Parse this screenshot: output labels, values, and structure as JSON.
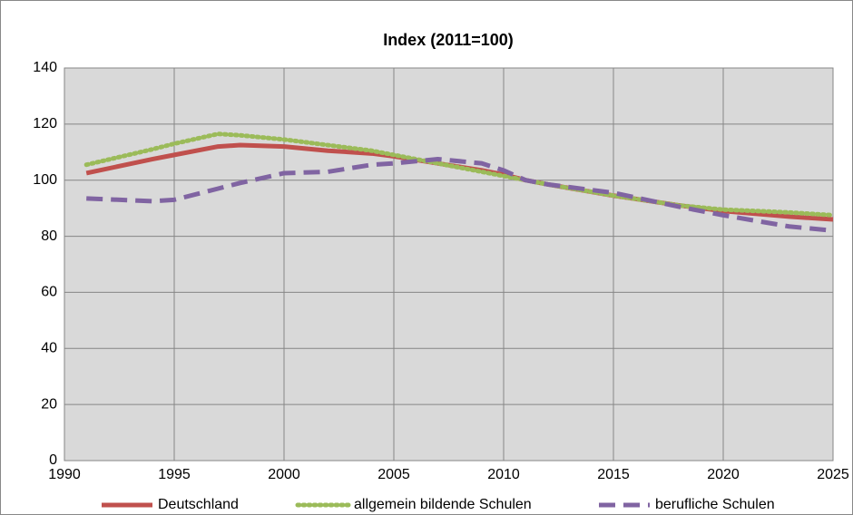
{
  "chart_data": {
    "type": "line",
    "title": "Index (2011=100)",
    "x": [
      1991,
      1994,
      1995,
      1997,
      1998,
      2000,
      2002,
      2004,
      2005,
      2007,
      2009,
      2010,
      2011,
      2012,
      2015,
      2018,
      2020,
      2023,
      2025
    ],
    "series": [
      {
        "name": "Deutschland",
        "color": "#c0504d",
        "style": "solid",
        "values": [
          102.5,
          107.5,
          109,
          112,
          112.5,
          112,
          110.5,
          109.5,
          108.5,
          106,
          103.5,
          102,
          100,
          98.5,
          94.5,
          91,
          89,
          87,
          86
        ]
      },
      {
        "name": "allgemein bildende Schulen",
        "color": "#9bbb59",
        "style": "dotted",
        "values": [
          105.5,
          111,
          113,
          116.5,
          116,
          114.5,
          112.5,
          110.5,
          109,
          106,
          103,
          101.5,
          100,
          98.5,
          94.5,
          91,
          89.5,
          88.5,
          87.5
        ]
      },
      {
        "name": "berufliche Schulen",
        "color": "#8064a2",
        "style": "dashed",
        "values": [
          93.5,
          92.5,
          93,
          97,
          99,
          102.5,
          103,
          105.5,
          106,
          107.5,
          106,
          103.5,
          100,
          98.5,
          95.5,
          90.5,
          87.5,
          83.5,
          82
        ]
      }
    ],
    "xlim": [
      1990,
      2025
    ],
    "xticks": [
      1990,
      1995,
      2000,
      2005,
      2010,
      2015,
      2020,
      2025
    ],
    "ylim": [
      0,
      140
    ],
    "yticks": [
      0,
      20,
      40,
      60,
      80,
      100,
      120,
      140
    ],
    "grid": true,
    "legend": "bottom"
  }
}
